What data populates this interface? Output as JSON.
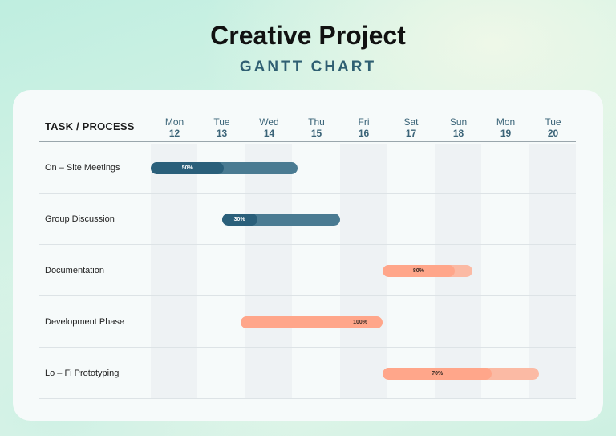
{
  "title": "Creative Project",
  "subtitle": "GANTT CHART",
  "chart_data": {
    "type": "gantt",
    "header": "TASK / PROCESS",
    "days": [
      {
        "name": "Mon",
        "num": "12"
      },
      {
        "name": "Tue",
        "num": "13"
      },
      {
        "name": "Wed",
        "num": "14"
      },
      {
        "name": "Thu",
        "num": "15"
      },
      {
        "name": "Fri",
        "num": "16"
      },
      {
        "name": "Sat",
        "num": "17"
      },
      {
        "name": "Sun",
        "num": "18"
      },
      {
        "name": "Mon",
        "num": "19"
      },
      {
        "name": "Tue",
        "num": "20"
      }
    ],
    "tasks": [
      {
        "label": "On – Site Meetings",
        "start": 12,
        "end": 15.1,
        "progress": 50,
        "progress_label": "50%",
        "color": "#2a5f7a"
      },
      {
        "label": "Group Discussion",
        "start": 13.5,
        "end": 16,
        "progress": 30,
        "progress_label": "30%",
        "color": "#2a5f7a"
      },
      {
        "label": "Documentation",
        "start": 16.9,
        "end": 18.8,
        "progress": 80,
        "progress_label": "80%",
        "color": "#ffa68a"
      },
      {
        "label": "Development Phase",
        "start": 13.9,
        "end": 16.9,
        "progress": 100,
        "progress_label": "100%",
        "color": "#ffa68a"
      },
      {
        "label": "Lo – Fi Prototyping",
        "start": 16.9,
        "end": 20.2,
        "progress": 70,
        "progress_label": "70%",
        "color": "#ffa68a"
      }
    ]
  }
}
